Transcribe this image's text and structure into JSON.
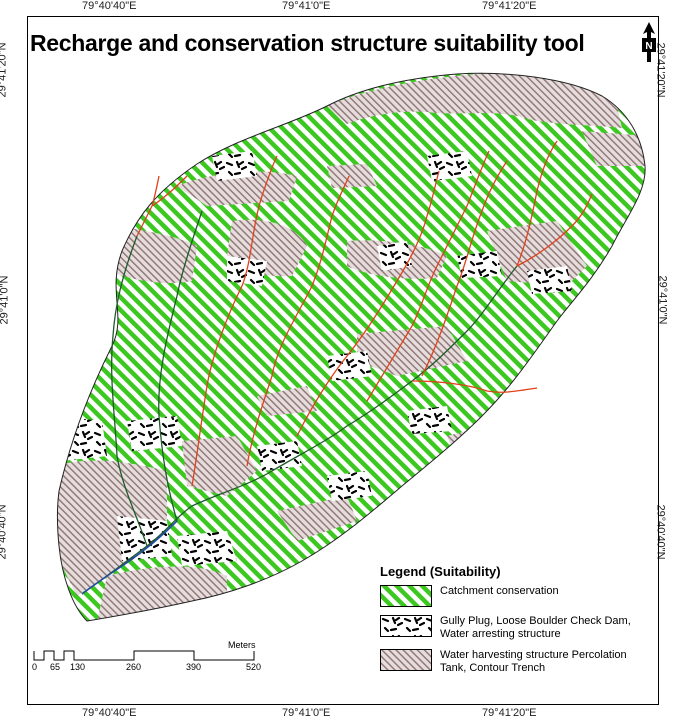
{
  "title": "Recharge and conservation structure suitability tool",
  "coords": {
    "top": [
      "79°40'40\"E",
      "79°41'0\"E",
      "79°41'20\"E"
    ],
    "bottom": [
      "79°40'40\"E",
      "79°41'0\"E",
      "79°41'20\"E"
    ],
    "left": [
      "29°41'20\"N",
      "29°41'0\"N",
      "29°40'40\"N"
    ],
    "right": [
      "29°41'20\"N",
      "29°41'0\"N",
      "29°40'40\"N"
    ]
  },
  "north_arrow": {
    "label": "N",
    "icon": "north-arrow-icon"
  },
  "legend": {
    "title": "Legend (Suitability)",
    "items": [
      {
        "label": "Catchment conservation",
        "color": "#3cc820"
      },
      {
        "label": "Gully Plug, Loose Boulder Check Dam, Water arresting structure",
        "color": "#000000"
      },
      {
        "label": "Water harvesting structure Percolation Tank, Contour Trench",
        "color": "#a08c8c"
      }
    ]
  },
  "scale": {
    "unit": "Meters",
    "ticks": [
      "0",
      "65",
      "130",
      "260",
      "390",
      "520"
    ]
  },
  "colors": {
    "stream_red": "#e0401a",
    "stream_green": "#1f5a2a",
    "stream_blue": "#1f4ea0"
  }
}
